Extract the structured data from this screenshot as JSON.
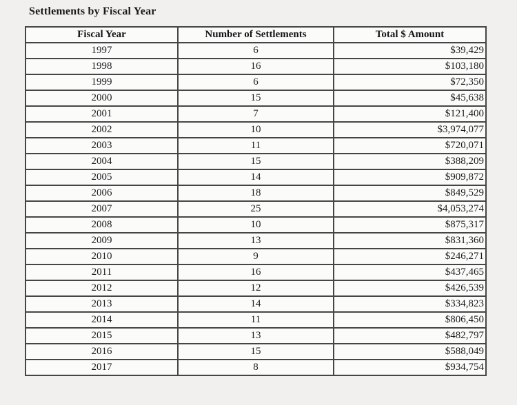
{
  "page": {
    "title": "Settlements by Fiscal Year"
  },
  "colors": {
    "page_background": "#f1f0ee",
    "cell_background": "#fbfbfa",
    "border": "#454545",
    "text": "#1c1c1c"
  },
  "table": {
    "columns": [
      "Fiscal Year",
      "Number of Settlements",
      "Total $ Amount"
    ],
    "rows": [
      {
        "year": "1997",
        "settlements": "6",
        "amount": "$39,429"
      },
      {
        "year": "1998",
        "settlements": "16",
        "amount": "$103,180"
      },
      {
        "year": "1999",
        "settlements": "6",
        "amount": "$72,350"
      },
      {
        "year": "2000",
        "settlements": "15",
        "amount": "$45,638"
      },
      {
        "year": "2001",
        "settlements": "7",
        "amount": "$121,400"
      },
      {
        "year": "2002",
        "settlements": "10",
        "amount": "$3,974,077"
      },
      {
        "year": "2003",
        "settlements": "11",
        "amount": "$720,071"
      },
      {
        "year": "2004",
        "settlements": "15",
        "amount": "$388,209"
      },
      {
        "year": "2005",
        "settlements": "14",
        "amount": "$909,872"
      },
      {
        "year": "2006",
        "settlements": "18",
        "amount": "$849,529"
      },
      {
        "year": "2007",
        "settlements": "25",
        "amount": "$4,053,274"
      },
      {
        "year": "2008",
        "settlements": "10",
        "amount": "$875,317"
      },
      {
        "year": "2009",
        "settlements": "13",
        "amount": "$831,360"
      },
      {
        "year": "2010",
        "settlements": "9",
        "amount": "$246,271"
      },
      {
        "year": "2011",
        "settlements": "16",
        "amount": "$437,465"
      },
      {
        "year": "2012",
        "settlements": "12",
        "amount": "$426,539"
      },
      {
        "year": "2013",
        "settlements": "14",
        "amount": "$334,823"
      },
      {
        "year": "2014",
        "settlements": "11",
        "amount": "$806,450"
      },
      {
        "year": "2015",
        "settlements": "13",
        "amount": "$482,797"
      },
      {
        "year": "2016",
        "settlements": "15",
        "amount": "$588,049"
      },
      {
        "year": "2017",
        "settlements": "8",
        "amount": "$934,754"
      }
    ]
  }
}
